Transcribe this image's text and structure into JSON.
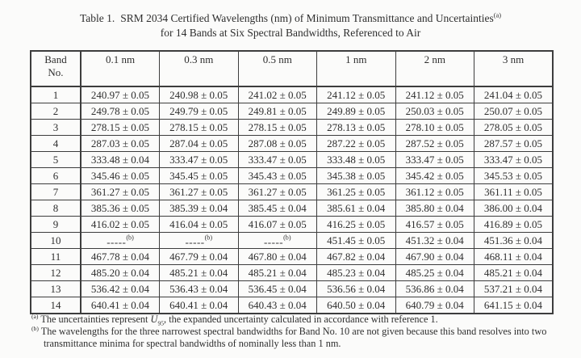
{
  "title": {
    "label": "Table 1.",
    "line1": "SRM 2034 Certified Wavelengths (nm) of Minimum Transmittance and Uncertainties",
    "superscript": "(a)",
    "line2": "for 14 Bands at Six Spectral Bandwidths, Referenced to Air"
  },
  "table": {
    "col1_header_line1": "Band",
    "col1_header_line2": "No.",
    "bandwidth_headers": [
      "0.1 nm",
      "0.3 nm",
      "0.5 nm",
      "1 nm",
      "2 nm",
      "3 nm"
    ],
    "rows": [
      {
        "band": "1",
        "cells": [
          "240.97 ± 0.05",
          "240.98 ± 0.05",
          "241.02 ± 0.05",
          "241.12 ± 0.05",
          "241.12 ± 0.05",
          "241.04 ± 0.05"
        ]
      },
      {
        "band": "2",
        "cells": [
          "249.78 ± 0.05",
          "249.79 ± 0.05",
          "249.81 ± 0.05",
          "249.89 ± 0.05",
          "250.03 ± 0.05",
          "250.07 ± 0.05"
        ]
      },
      {
        "band": "3",
        "cells": [
          "278.15 ± 0.05",
          "278.15 ± 0.05",
          "278.15 ± 0.05",
          "278.13 ± 0.05",
          "278.10 ± 0.05",
          "278.05 ± 0.05"
        ]
      },
      {
        "band": "4",
        "cells": [
          "287.03 ± 0.05",
          "287.04 ± 0.05",
          "287.08 ± 0.05",
          "287.22 ± 0.05",
          "287.52 ± 0.05",
          "287.57 ± 0.05"
        ]
      },
      {
        "band": "5",
        "cells": [
          "333.48 ± 0.04",
          "333.47 ± 0.05",
          "333.47 ± 0.05",
          "333.48 ± 0.05",
          "333.47 ± 0.05",
          "333.47 ± 0.05"
        ]
      },
      {
        "band": "6",
        "cells": [
          "345.46 ± 0.05",
          "345.45 ± 0.05",
          "345.43 ± 0.05",
          "345.38 ± 0.05",
          "345.42 ± 0.05",
          "345.53 ± 0.05"
        ]
      },
      {
        "band": "7",
        "cells": [
          "361.27 ± 0.05",
          "361.27 ± 0.05",
          "361.27 ± 0.05",
          "361.25 ± 0.05",
          "361.12 ± 0.05",
          "361.11 ± 0.05"
        ]
      },
      {
        "band": "8",
        "cells": [
          "385.36 ± 0.05",
          "385.39 ± 0.04",
          "385.45 ± 0.04",
          "385.61 ± 0.04",
          "385.80 ± 0.04",
          "386.00 ± 0.04"
        ]
      },
      {
        "band": "9",
        "cells": [
          "416.02 ± 0.05",
          "416.04 ± 0.05",
          "416.07 ± 0.05",
          "416.25 ± 0.05",
          "416.57 ± 0.05",
          "416.89 ± 0.05"
        ]
      },
      {
        "band": "10",
        "cells": [
          "-----(b)",
          "-----(b)",
          "-----(b)",
          "451.45 ± 0.05",
          "451.32 ± 0.04",
          "451.36 ± 0.04"
        ]
      },
      {
        "band": "11",
        "cells": [
          "467.78 ± 0.04",
          "467.79 ± 0.04",
          "467.80 ± 0.04",
          "467.82 ± 0.04",
          "467.90 ± 0.04",
          "468.11 ± 0.04"
        ]
      },
      {
        "band": "12",
        "cells": [
          "485.20 ± 0.04",
          "485.21 ± 0.04",
          "485.21 ± 0.04",
          "485.23 ± 0.04",
          "485.25 ± 0.04",
          "485.21 ± 0.04"
        ]
      },
      {
        "band": "13",
        "cells": [
          "536.42 ± 0.04",
          "536.43 ± 0.04",
          "536.45 ± 0.04",
          "536.56 ± 0.04",
          "536.86 ± 0.04",
          "537.21 ± 0.04"
        ]
      },
      {
        "band": "14",
        "cells": [
          "640.41 ± 0.04",
          "640.41 ± 0.04",
          "640.43 ± 0.04",
          "640.50 ± 0.04",
          "640.79 ± 0.04",
          "641.15 ± 0.04"
        ]
      }
    ]
  },
  "footnotes": {
    "a": {
      "marker": "(a)",
      "before": "The uncertainties represent ",
      "symbol": "U",
      "subscript": "95",
      "after": ", the expanded uncertainty calculated in accordance with reference 1."
    },
    "b": {
      "marker": "(b)",
      "text": "The wavelengths for the three narrowest spectral bandwidths for Band No. 10 are not given because this band resolves into two transmittance minima for spectral bandwidths of nominally less than 1 nm."
    }
  }
}
